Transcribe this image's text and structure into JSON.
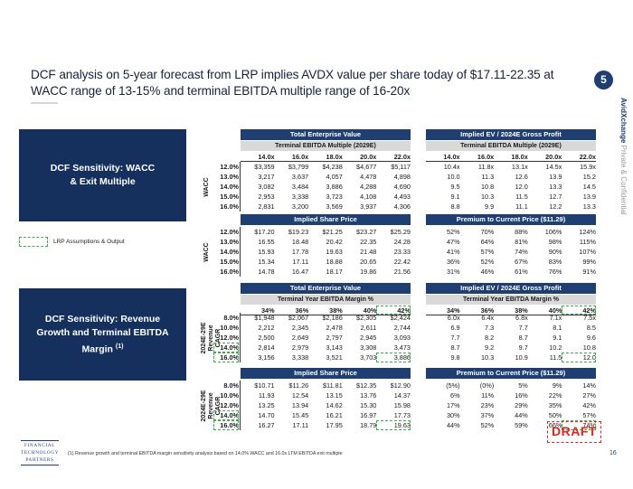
{
  "title": "DCF analysis on 5-year forecast from LRP implies AVDX value per share today of $17.11-22.35 at WACC range of 13-15% and terminal EBITDA multiple range of 16-20x",
  "section_number": "5",
  "side_label": {
    "brand": "AvidXchange",
    "rest": "Private & Confidential"
  },
  "legend_label": "LRP Assumptions & Output",
  "footnote": "(1)    Revenue growth and terminal EBITDA margin sensitivity analysis based on 14.0% WACC and 16.0x LTM EBITDA exit multiple",
  "draft_label": "DRAFT",
  "page_number": "16",
  "logo": {
    "line1": "FINANCIAL",
    "line2": "TECHNOLOGY",
    "line3": "PARTNERS"
  },
  "colors": {
    "navy": "#15305d",
    "header": "#1f3f73",
    "highlight": "#3fae4a",
    "draft": "#e0251b"
  },
  "top_section": {
    "box_label": "DCF Sensitivity: WACC & Exit Multiple",
    "row_axis_label": "WACC",
    "row_labels": [
      "12.0%",
      "13.0%",
      "14.0%",
      "15.0%",
      "16.0%"
    ],
    "tev": {
      "header": "Total Enterprise Value",
      "subheader": "Terminal EBITDA Multiple (2029E)",
      "columns": [
        "14.0x",
        "16.0x",
        "18.0x",
        "20.0x",
        "22.0x"
      ],
      "rows": [
        [
          "$3,359",
          "$3,799",
          "$4,238",
          "$4,677",
          "$5,117"
        ],
        [
          "3,217",
          "3,637",
          "4,057",
          "4,478",
          "4,898"
        ],
        [
          "3,082",
          "3,484",
          "3,886",
          "4,288",
          "4,690"
        ],
        [
          "2,953",
          "3,338",
          "3,723",
          "4,108",
          "4,493"
        ],
        [
          "2,831",
          "3,200",
          "3,569",
          "3,937",
          "4,306"
        ]
      ]
    },
    "ev_gp": {
      "header": "Implied EV / 2024E Gross Profit",
      "subheader": "Terminal EBITDA Multiple (2029E)",
      "columns": [
        "14.0x",
        "16.0x",
        "18.0x",
        "20.0x",
        "22.0x"
      ],
      "rows": [
        [
          "10.4x",
          "11.8x",
          "13.1x",
          "14.5x",
          "15.9x"
        ],
        [
          "10.0",
          "11.3",
          "12.6",
          "13.9",
          "15.2"
        ],
        [
          "9.5",
          "10.8",
          "12.0",
          "13.3",
          "14.5"
        ],
        [
          "9.1",
          "10.3",
          "11.5",
          "12.7",
          "13.9"
        ],
        [
          "8.8",
          "9.9",
          "11.1",
          "12.2",
          "13.3"
        ]
      ]
    },
    "share_price": {
      "header": "Implied Share Price",
      "rows": [
        [
          "$17.20",
          "$19.23",
          "$21.25",
          "$23.27",
          "$25.29"
        ],
        [
          "16.55",
          "18.48",
          "20.42",
          "22.35",
          "24.28"
        ],
        [
          "15.93",
          "17.78",
          "19.63",
          "21.48",
          "23.33"
        ],
        [
          "15.34",
          "17.11",
          "18.88",
          "20.65",
          "22.42"
        ],
        [
          "14.78",
          "16.47",
          "18.17",
          "19.86",
          "21.56"
        ]
      ]
    },
    "premium": {
      "header": "Premium to Current Price ($11.29)",
      "rows": [
        [
          "52%",
          "70%",
          "88%",
          "106%",
          "124%"
        ],
        [
          "47%",
          "64%",
          "81%",
          "98%",
          "115%"
        ],
        [
          "41%",
          "57%",
          "74%",
          "90%",
          "107%"
        ],
        [
          "36%",
          "52%",
          "67%",
          "83%",
          "99%"
        ],
        [
          "31%",
          "46%",
          "61%",
          "76%",
          "91%"
        ]
      ]
    }
  },
  "bottom_section": {
    "box_label": "DCF Sensitivity: Revenue Growth and Terminal EBITDA Margin",
    "box_sup": "(1)",
    "row_axis_label_1": "2024E-29E",
    "row_axis_label_2": "Revenue",
    "row_axis_label_3": "CAGR",
    "row_labels": [
      "8.0%",
      "10.0%",
      "12.0%",
      "14.0%",
      "16.0%"
    ],
    "tev": {
      "header": "Total Enterprise Value",
      "subheader": "Terminal Year EBITDA Margin %",
      "columns": [
        "34%",
        "36%",
        "38%",
        "40%",
        "42%"
      ],
      "rows": [
        [
          "$1,948",
          "$2,067",
          "$2,186",
          "$2,305",
          "$2,424"
        ],
        [
          "2,212",
          "2,345",
          "2,478",
          "2,611",
          "2,744"
        ],
        [
          "2,500",
          "2,649",
          "2,797",
          "2,945",
          "3,093"
        ],
        [
          "2,814",
          "2,979",
          "3,143",
          "3,308",
          "3,473"
        ],
        [
          "3,156",
          "3,338",
          "3,521",
          "3,703",
          "3,886"
        ]
      ]
    },
    "ev_gp": {
      "header": "Implied EV / 2024E Gross Profit",
      "subheader": "Terminal Year EBITDA Margin %",
      "columns": [
        "34%",
        "36%",
        "38%",
        "40%",
        "42%"
      ],
      "rows": [
        [
          "6.0x",
          "6.4x",
          "6.8x",
          "7.1x",
          "7.5x"
        ],
        [
          "6.9",
          "7.3",
          "7.7",
          "8.1",
          "8.5"
        ],
        [
          "7.7",
          "8.2",
          "8.7",
          "9.1",
          "9.6"
        ],
        [
          "8.7",
          "9.2",
          "9.7",
          "10.2",
          "10.8"
        ],
        [
          "9.8",
          "10.3",
          "10.9",
          "11.5",
          "12.0"
        ]
      ]
    },
    "share_price": {
      "header": "Implied Share Price",
      "rows": [
        [
          "$10.71",
          "$11.26",
          "$11.81",
          "$12.35",
          "$12.90"
        ],
        [
          "11.93",
          "12.54",
          "13.15",
          "13.76",
          "14.37"
        ],
        [
          "13.25",
          "13.94",
          "14.62",
          "15.30",
          "15.98"
        ],
        [
          "14.70",
          "15.45",
          "16.21",
          "16.97",
          "17.73"
        ],
        [
          "16.27",
          "17.11",
          "17.95",
          "18.79",
          "19.63"
        ]
      ]
    },
    "premium": {
      "header": "Premium to Current Price ($11.29)",
      "rows": [
        [
          "(5%)",
          "(0%)",
          "5%",
          "9%",
          "14%"
        ],
        [
          "6%",
          "11%",
          "16%",
          "22%",
          "27%"
        ],
        [
          "17%",
          "23%",
          "29%",
          "35%",
          "42%"
        ],
        [
          "30%",
          "37%",
          "44%",
          "50%",
          "57%"
        ],
        [
          "44%",
          "52%",
          "59%",
          "66%",
          "74%"
        ]
      ]
    }
  }
}
